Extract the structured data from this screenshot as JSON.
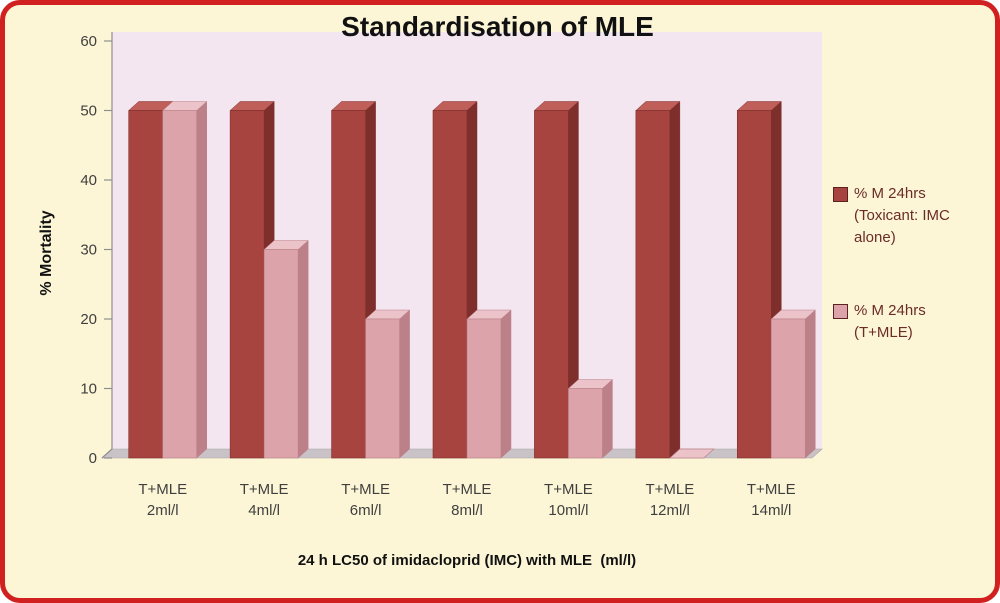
{
  "frame": {
    "border_color": "#d02020",
    "background": "#fcf6d6"
  },
  "chart_data": {
    "type": "bar",
    "style": "3d-clustered-column",
    "title": "Standardisation of MLE",
    "xlabel": "24 h LC50 of imidacloprid (IMC) with MLE  (ml/l)",
    "ylabel": "% Mortality",
    "ylim": [
      0,
      60
    ],
    "yticks": [
      0,
      10,
      20,
      30,
      40,
      50,
      60
    ],
    "grid": false,
    "legend_position": "right",
    "plot_bg": "#f3e6f0",
    "floor_color": "#c9c3c8",
    "axis_color": "#8f8f8f",
    "tick_label_color": "#3f3f3f",
    "legend_text_color": "#6b2b27",
    "categories": [
      {
        "line1": "T+MLE",
        "line2": "2ml/l"
      },
      {
        "line1": "T+MLE",
        "line2": "4ml/l"
      },
      {
        "line1": "T+MLE",
        "line2": "6ml/l"
      },
      {
        "line1": "T+MLE",
        "line2": "8ml/l"
      },
      {
        "line1": "T+MLE",
        "line2": "10ml/l"
      },
      {
        "line1": "T+MLE",
        "line2": "12ml/l"
      },
      {
        "line1": "T+MLE",
        "line2": "14ml/l"
      }
    ],
    "series": [
      {
        "name": "% M 24hrs (Toxicant: IMC alone)",
        "legend_lines": [
          "% M 24hrs",
          "(Toxicant: IMC",
          "alone)"
        ],
        "color": "#a84440",
        "color_top": "#c05f59",
        "color_side": "#7e2f2c",
        "values": [
          50,
          50,
          50,
          50,
          50,
          50,
          50
        ]
      },
      {
        "name": "% M 24hrs (T+MLE)",
        "legend_lines": [
          "% M 24hrs",
          "(T+MLE)"
        ],
        "color": "#dca3ab",
        "color_top": "#ebc3c9",
        "color_side": "#bc8089",
        "values": [
          50,
          30,
          20,
          20,
          10,
          0,
          20
        ]
      }
    ]
  }
}
